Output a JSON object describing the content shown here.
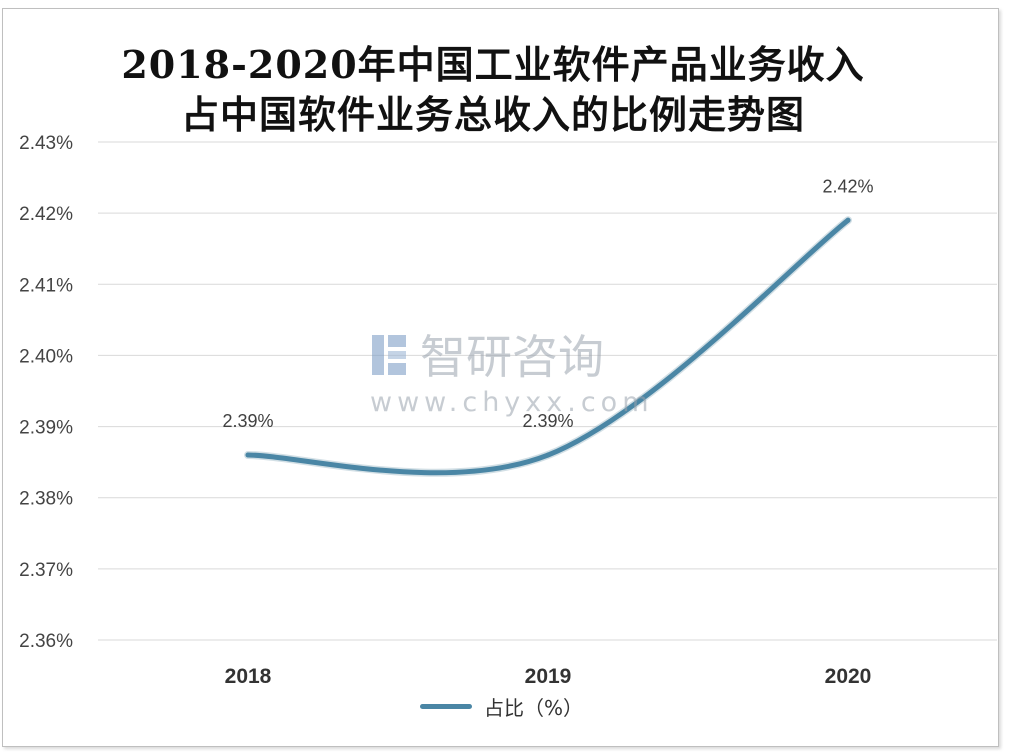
{
  "chart_data": {
    "type": "line",
    "title_lines": [
      "2018-2020年中国工业软件产品业务收入",
      "占中国软件业务总收入的比例走势图"
    ],
    "categories": [
      "2018",
      "2019",
      "2020"
    ],
    "series": [
      {
        "name": "占比（%）",
        "values": [
          2.386,
          2.386,
          2.419
        ],
        "labels": [
          "2.39%",
          "2.39%",
          "2.42%"
        ]
      }
    ],
    "ylim": [
      2.36,
      2.43
    ],
    "yticks": [
      2.36,
      2.37,
      2.38,
      2.39,
      2.4,
      2.41,
      2.42,
      2.43
    ],
    "ytick_labels": [
      "2.36%",
      "2.37%",
      "2.38%",
      "2.39%",
      "2.40%",
      "2.41%",
      "2.42%",
      "2.43%"
    ],
    "grid": true,
    "legend_position": "bottom",
    "line_color": "#4a86a5"
  },
  "watermark": {
    "brand": "智研咨询",
    "url": "www.chyxx.com"
  }
}
